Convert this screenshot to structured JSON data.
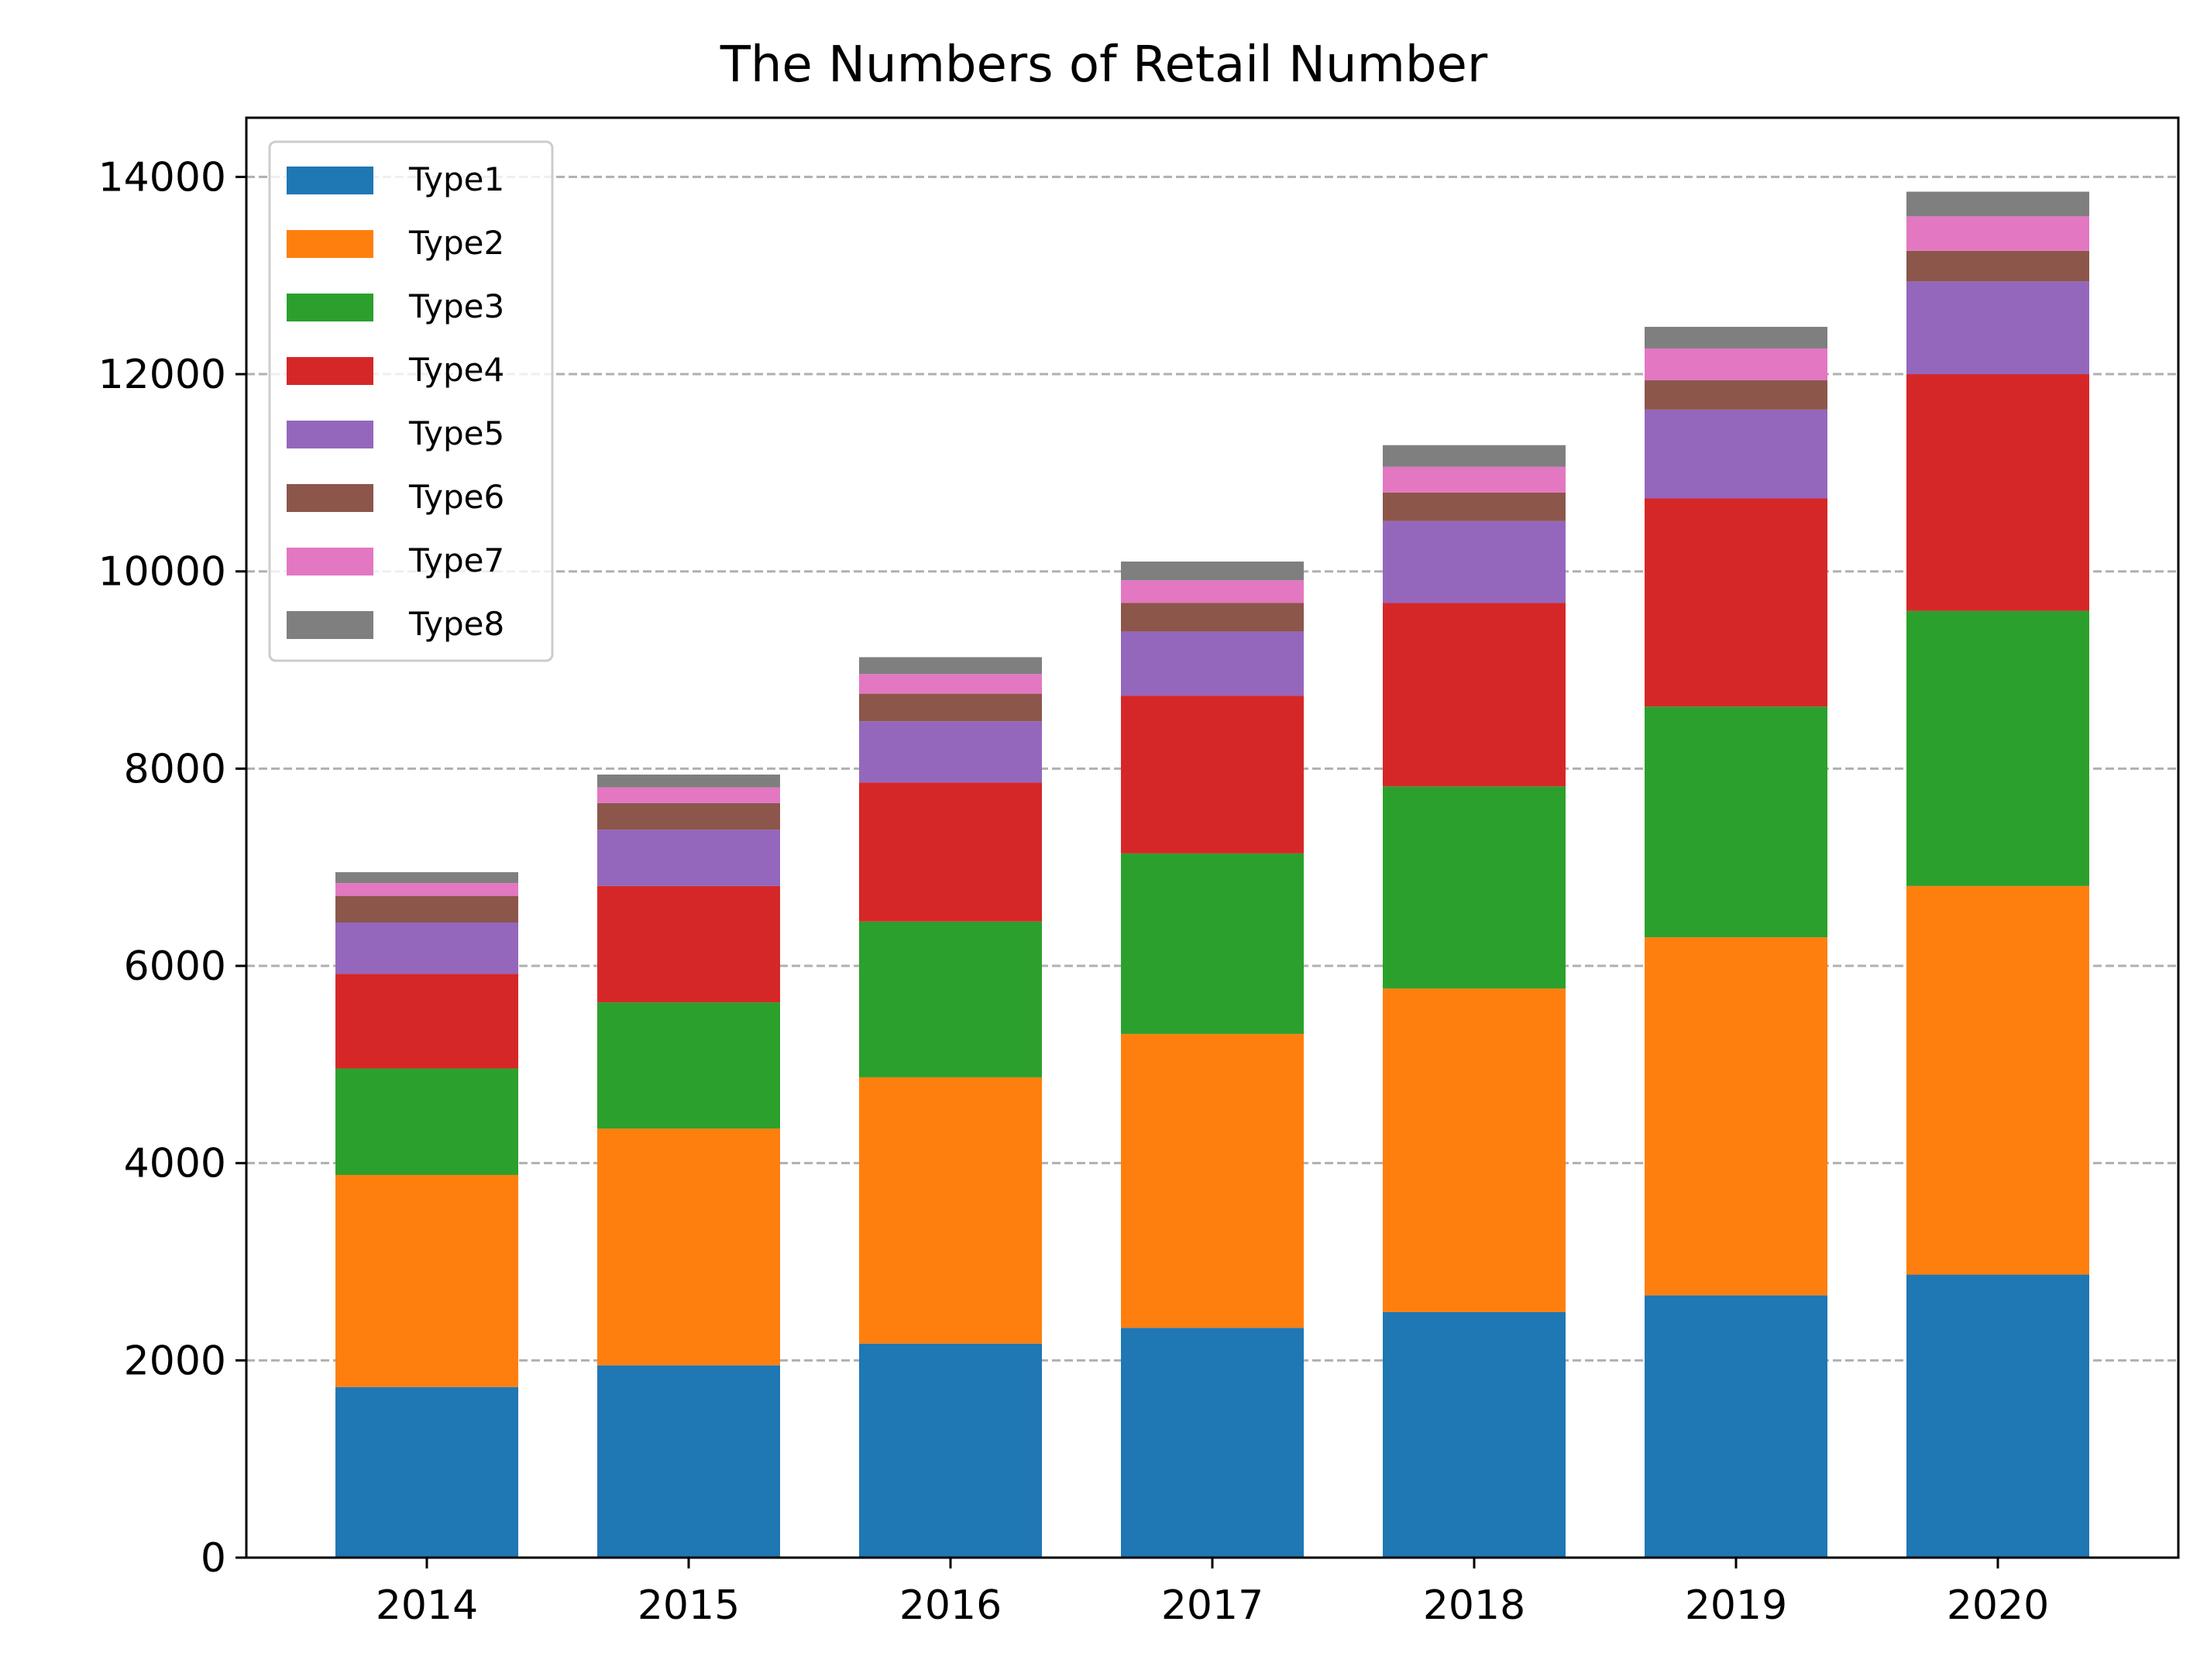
{
  "chart_data": {
    "type": "bar",
    "stacked": true,
    "title": "The Numbers of Retail Number",
    "xlabel": "",
    "ylabel": "",
    "categories": [
      "2014",
      "2015",
      "2016",
      "2017",
      "2018",
      "2019",
      "2020"
    ],
    "ylim": [
      0,
      14600
    ],
    "yticks": [
      0,
      2000,
      4000,
      6000,
      8000,
      10000,
      12000,
      14000
    ],
    "grid": "y-dashed",
    "legend_position": "top-left",
    "series": [
      {
        "name": "Type1",
        "color": "#1f77b4",
        "values": [
          1730,
          1950,
          2170,
          2330,
          2490,
          2660,
          2870
        ]
      },
      {
        "name": "Type2",
        "color": "#ff7f0e",
        "values": [
          2150,
          2400,
          2700,
          2980,
          3280,
          3630,
          3940
        ]
      },
      {
        "name": "Type3",
        "color": "#2ca02c",
        "values": [
          1080,
          1280,
          1580,
          1830,
          2050,
          2340,
          2790
        ]
      },
      {
        "name": "Type4",
        "color": "#d62728",
        "values": [
          960,
          1180,
          1410,
          1600,
          1860,
          2110,
          2400
        ]
      },
      {
        "name": "Type5",
        "color": "#9467bd",
        "values": [
          520,
          570,
          620,
          650,
          830,
          900,
          940
        ]
      },
      {
        "name": "Type6",
        "color": "#8c564b",
        "values": [
          270,
          270,
          280,
          290,
          290,
          300,
          310
        ]
      },
      {
        "name": "Type7",
        "color": "#e377c2",
        "values": [
          130,
          160,
          200,
          230,
          260,
          320,
          350
        ]
      },
      {
        "name": "Type8",
        "color": "#7f7f7f",
        "values": [
          110,
          130,
          170,
          190,
          220,
          220,
          250
        ]
      }
    ]
  }
}
